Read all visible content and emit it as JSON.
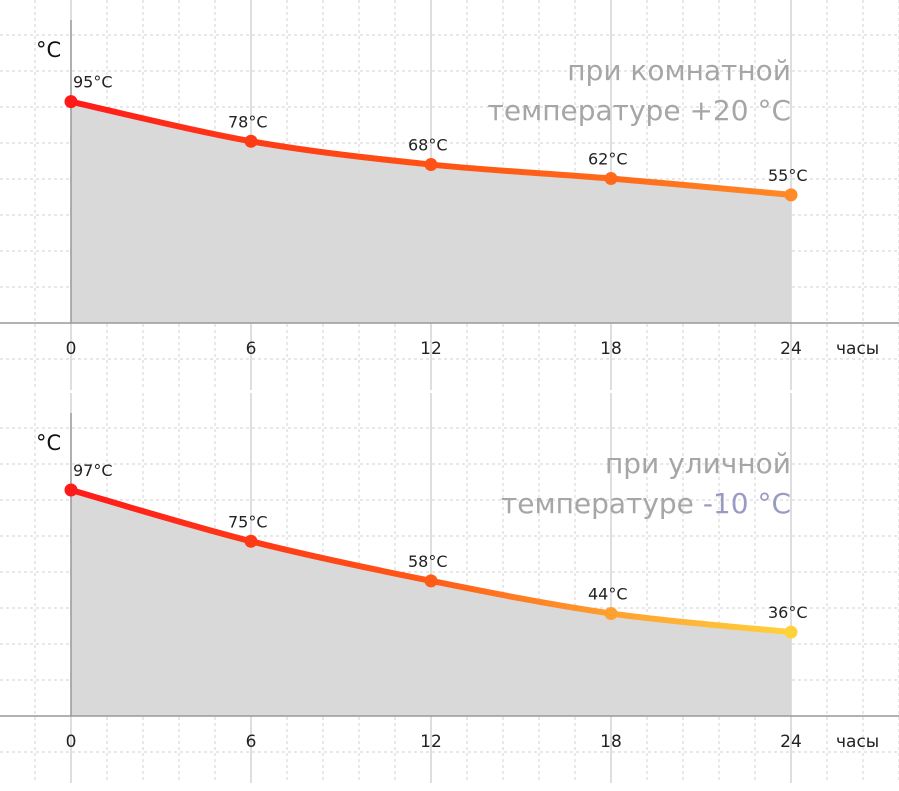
{
  "chart_data": [
    {
      "type": "area",
      "ylabel": "°C",
      "xlabel": "часы",
      "x": [
        0,
        6,
        12,
        18,
        24
      ],
      "series": [
        {
          "values": [
            95,
            78,
            68,
            62,
            55
          ],
          "labels": [
            "95°C",
            "78°C",
            "68°C",
            "62°C",
            "55°C"
          ],
          "colors": [
            "#ff1a1a",
            "#ff3a16",
            "#ff5214",
            "#ff6a1a",
            "#ff8a26"
          ]
        }
      ],
      "caption": {
        "line1": "при комнатной",
        "line2_prefix": "температуре",
        "line2_value": "+20 °C"
      },
      "value_color": "#a6a6a6",
      "ylim": [
        0,
        100
      ],
      "grid": true
    },
    {
      "type": "area",
      "ylabel": "°C",
      "xlabel": "часы",
      "x": [
        0,
        6,
        12,
        18,
        24
      ],
      "series": [
        {
          "values": [
            97,
            75,
            58,
            44,
            36
          ],
          "labels": [
            "97°C",
            "75°C",
            "58°C",
            "44°C",
            "36°C"
          ],
          "colors": [
            "#ff1a1a",
            "#ff3816",
            "#ff5a18",
            "#ffa030",
            "#ffd23c"
          ]
        }
      ],
      "caption": {
        "line1": "при уличной",
        "line2_prefix": "температуре",
        "line2_value": "-10 °C"
      },
      "value_color": "#9a9ac4",
      "ylim": [
        0,
        100
      ],
      "grid": true
    }
  ]
}
